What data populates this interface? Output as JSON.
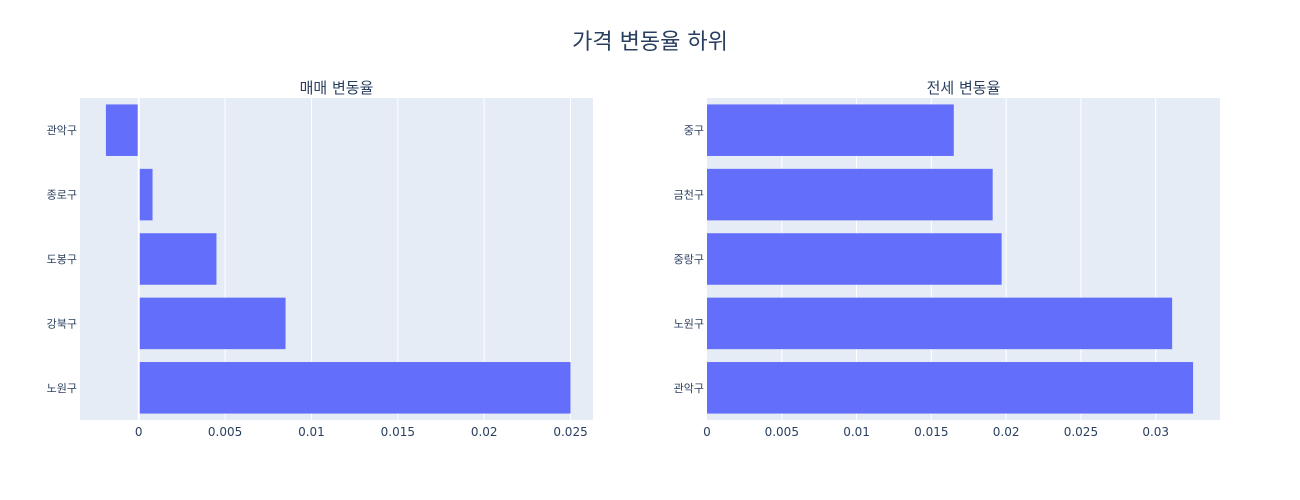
{
  "title": "가격 변동율 하위",
  "colors": {
    "bar": "#636efa",
    "plot_bg": "#e5ecf6",
    "grid": "#ffffff",
    "text": "#2a3f5f"
  },
  "chart_data": [
    {
      "type": "bar",
      "orientation": "horizontal",
      "title": "매매 변동율",
      "categories": [
        "관악구",
        "종로구",
        "도봉구",
        "강북구",
        "노원구"
      ],
      "values": [
        -0.0019,
        0.0008,
        0.0045,
        0.0085,
        0.025
      ],
      "xlim": [
        -0.0034,
        0.0263
      ],
      "xticks": [
        0,
        0.005,
        0.01,
        0.015,
        0.02,
        0.025
      ],
      "xtick_labels": [
        "0",
        "0.005",
        "0.01",
        "0.015",
        "0.02",
        "0.025"
      ],
      "grid": true
    },
    {
      "type": "bar",
      "orientation": "horizontal",
      "title": "전세 변동율",
      "categories": [
        "중구",
        "금천구",
        "중랑구",
        "노원구",
        "관악구"
      ],
      "values": [
        0.0165,
        0.0191,
        0.0197,
        0.0311,
        0.0325
      ],
      "xlim": [
        0,
        0.0343
      ],
      "xticks": [
        0,
        0.005,
        0.01,
        0.015,
        0.02,
        0.025,
        0.03
      ],
      "xtick_labels": [
        "0",
        "0.005",
        "0.01",
        "0.015",
        "0.02",
        "0.025",
        "0.03"
      ],
      "grid": true
    }
  ]
}
